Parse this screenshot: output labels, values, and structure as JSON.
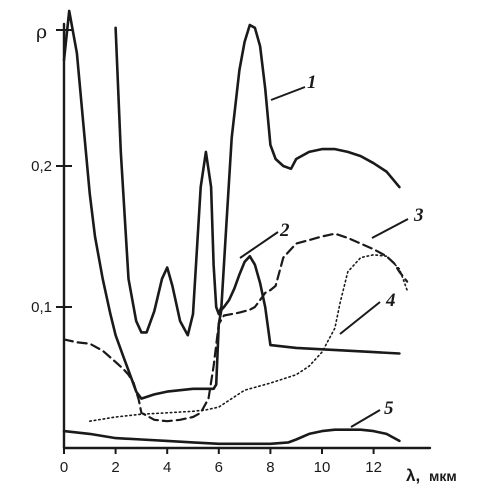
{
  "chart_data": {
    "type": "line",
    "ylabel": "ρ",
    "xlabel": "λ,",
    "xunit": "мкм",
    "xlim": [
      0,
      13.5
    ],
    "ylim": [
      0,
      0.3
    ],
    "xticks": [
      0,
      2,
      4,
      6,
      8,
      10,
      12
    ],
    "yticks": [
      {
        "value": 0.1,
        "label": "0,1"
      },
      {
        "value": 0.2,
        "label": "0,2"
      }
    ],
    "series": [
      {
        "name": "1",
        "style": "solid",
        "x": [
          2.0,
          2.2,
          2.5,
          2.8,
          3.0,
          3.2,
          3.5,
          3.8,
          4.0,
          4.2,
          4.5,
          4.8,
          5.0,
          5.3,
          5.5,
          5.7,
          5.8,
          5.9,
          6.0,
          6.1,
          6.3,
          6.5,
          6.8,
          7.0,
          7.2,
          7.4,
          7.6,
          7.8,
          8.0,
          8.2,
          8.5,
          8.8,
          9.0,
          9.5,
          10.0,
          10.5,
          11.0,
          11.5,
          12.0,
          12.5,
          13.0
        ],
        "y": [
          0.298,
          0.21,
          0.12,
          0.09,
          0.082,
          0.082,
          0.097,
          0.12,
          0.128,
          0.115,
          0.09,
          0.08,
          0.095,
          0.185,
          0.21,
          0.185,
          0.13,
          0.1,
          0.095,
          0.1,
          0.16,
          0.22,
          0.268,
          0.288,
          0.3,
          0.298,
          0.285,
          0.255,
          0.215,
          0.205,
          0.2,
          0.198,
          0.205,
          0.21,
          0.212,
          0.212,
          0.21,
          0.207,
          0.202,
          0.196,
          0.185
        ]
      },
      {
        "name": "2",
        "style": "solid",
        "x": [
          0.0,
          0.2,
          0.5,
          0.8,
          1.0,
          1.2,
          1.5,
          1.8,
          2.0,
          2.3,
          2.5,
          2.8,
          3.0,
          3.5,
          4.0,
          4.5,
          5.0,
          5.5,
          5.8,
          5.9,
          6.0,
          6.1,
          6.2,
          6.4,
          6.6,
          6.8,
          7.0,
          7.2,
          7.4,
          7.6,
          7.8,
          8.0,
          9.0,
          10.0,
          11.0,
          12.0,
          13.0
        ],
        "y": [
          0.275,
          0.31,
          0.28,
          0.22,
          0.18,
          0.15,
          0.12,
          0.095,
          0.08,
          0.065,
          0.055,
          0.04,
          0.035,
          0.038,
          0.04,
          0.041,
          0.042,
          0.042,
          0.042,
          0.045,
          0.088,
          0.098,
          0.1,
          0.105,
          0.113,
          0.123,
          0.132,
          0.136,
          0.13,
          0.117,
          0.1,
          0.073,
          0.071,
          0.07,
          0.069,
          0.068,
          0.067
        ]
      },
      {
        "name": "3",
        "style": "dashed",
        "x": [
          0.0,
          0.5,
          1.0,
          1.5,
          2.0,
          2.3,
          2.5,
          2.7,
          2.9,
          3.0,
          3.5,
          4.0,
          4.5,
          5.0,
          5.3,
          5.6,
          5.8,
          6.0,
          6.2,
          6.5,
          6.8,
          7.0,
          7.2,
          7.4,
          7.6,
          7.8,
          8.0,
          8.2,
          8.5,
          9.0,
          10.0,
          10.5,
          11.0,
          11.5,
          12.0,
          12.5,
          12.8,
          13.0,
          13.3
        ],
        "y": [
          0.077,
          0.075,
          0.074,
          0.069,
          0.061,
          0.056,
          0.052,
          0.046,
          0.034,
          0.025,
          0.02,
          0.019,
          0.02,
          0.022,
          0.025,
          0.035,
          0.058,
          0.088,
          0.094,
          0.095,
          0.096,
          0.097,
          0.098,
          0.1,
          0.105,
          0.11,
          0.112,
          0.115,
          0.135,
          0.145,
          0.15,
          0.152,
          0.149,
          0.145,
          0.141,
          0.136,
          0.131,
          0.125,
          0.118
        ]
      },
      {
        "name": "4",
        "style": "dotted",
        "x": [
          1.0,
          2.0,
          3.0,
          4.0,
          5.0,
          5.5,
          6.0,
          6.5,
          7.0,
          8.0,
          9.0,
          9.5,
          10.0,
          10.5,
          10.7,
          11.0,
          11.5,
          12.0,
          12.5,
          13.0,
          13.3
        ],
        "y": [
          0.019,
          0.022,
          0.024,
          0.025,
          0.026,
          0.027,
          0.029,
          0.035,
          0.041,
          0.046,
          0.052,
          0.058,
          0.068,
          0.085,
          0.103,
          0.125,
          0.135,
          0.137,
          0.136,
          0.127,
          0.112
        ]
      },
      {
        "name": "5",
        "style": "solid",
        "x": [
          0.0,
          1.0,
          2.0,
          3.0,
          4.0,
          5.0,
          6.0,
          7.0,
          8.0,
          8.7,
          9.0,
          9.5,
          10.0,
          10.5,
          11.0,
          11.5,
          12.0,
          12.5,
          13.0
        ],
        "y": [
          0.012,
          0.01,
          0.007,
          0.006,
          0.005,
          0.004,
          0.003,
          0.003,
          0.003,
          0.004,
          0.006,
          0.01,
          0.012,
          0.013,
          0.013,
          0.013,
          0.012,
          0.01,
          0.005
        ]
      }
    ],
    "annotations": [
      {
        "text": "1",
        "series": "1"
      },
      {
        "text": "2",
        "series": "2"
      },
      {
        "text": "3",
        "series": "3"
      },
      {
        "text": "4",
        "series": "4"
      },
      {
        "text": "5",
        "series": "5"
      }
    ],
    "grid": false,
    "legend": "none"
  }
}
